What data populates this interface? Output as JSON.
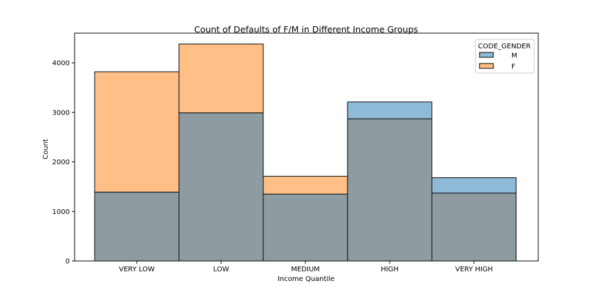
{
  "chart_data": {
    "type": "bar",
    "title": "Count of Defaults of F/M in Different Income Groups",
    "xlabel": "Income Quantile",
    "ylabel": "Count",
    "categories": [
      "VERY LOW",
      "LOW",
      "MEDIUM",
      "HIGH",
      "VERY HIGH"
    ],
    "series": [
      {
        "name": "M",
        "values": [
          1390,
          2990,
          1350,
          3210,
          1680
        ],
        "color": "#1f77b4"
      },
      {
        "name": "F",
        "values": [
          3820,
          4380,
          1710,
          2870,
          1370
        ],
        "color": "#ff7f0e"
      }
    ],
    "overlap_color": "#8e9ba1",
    "bar_style": "overlapping histogram, semi-transparent fills",
    "ylim": [
      0,
      4600
    ],
    "yticks": [
      0,
      1000,
      2000,
      3000,
      4000
    ],
    "grid": false,
    "legend": {
      "title": "CODE_GENDER",
      "placement": "top-right",
      "entries": [
        "M",
        "F"
      ]
    }
  }
}
